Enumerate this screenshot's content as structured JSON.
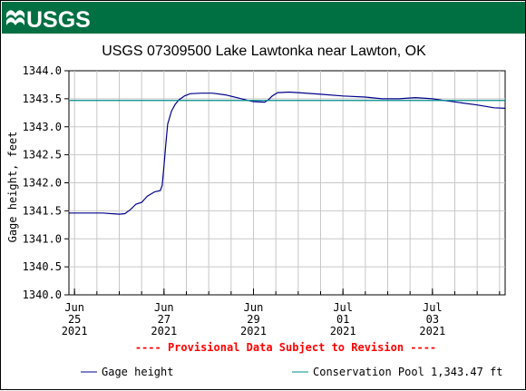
{
  "header": {
    "logo_text": "USGS",
    "band_color": "#006f41"
  },
  "chart_data": {
    "type": "line",
    "title": "USGS 07309500 Lake Lawtonka near Lawton, OK",
    "ylabel": "Gage height, feet",
    "xlabel": "",
    "ylim": [
      1340.0,
      1344.0
    ],
    "y_ticks": [
      "1340.0",
      "1340.5",
      "1341.0",
      "1341.5",
      "1342.0",
      "1342.5",
      "1343.0",
      "1343.5",
      "1344.0"
    ],
    "x_range": [
      "2021-06-24T21:00",
      "2021-07-04T15:00"
    ],
    "x_ticks": [
      {
        "date": "2021-06-25T00:00",
        "line1": "Jun",
        "line2": "25",
        "line3": "2021"
      },
      {
        "date": "2021-06-27T00:00",
        "line1": "Jun",
        "line2": "27",
        "line3": "2021"
      },
      {
        "date": "2021-06-29T00:00",
        "line1": "Jun",
        "line2": "29",
        "line3": "2021"
      },
      {
        "date": "2021-07-01T00:00",
        "line1": "Jul",
        "line2": "01",
        "line3": "2021"
      },
      {
        "date": "2021-07-03T00:00",
        "line1": "Jul",
        "line2": "03",
        "line3": "2021"
      }
    ],
    "grid": true,
    "provisional_note": "---- Provisional Data Subject to Revision ----",
    "series": [
      {
        "name": "Gage height",
        "color": "#00008b",
        "points": [
          [
            "2021-06-24T21:00",
            1341.46
          ],
          [
            "2021-06-25T06:00",
            1341.46
          ],
          [
            "2021-06-25T15:00",
            1341.46
          ],
          [
            "2021-06-26T00:00",
            1341.44
          ],
          [
            "2021-06-26T03:00",
            1341.45
          ],
          [
            "2021-06-26T06:00",
            1341.52
          ],
          [
            "2021-06-26T09:00",
            1341.62
          ],
          [
            "2021-06-26T12:00",
            1341.65
          ],
          [
            "2021-06-26T15:00",
            1341.76
          ],
          [
            "2021-06-26T19:00",
            1341.84
          ],
          [
            "2021-06-26T22:00",
            1341.86
          ],
          [
            "2021-06-26T23:00",
            1341.95
          ],
          [
            "2021-06-27T00:00",
            1342.3
          ],
          [
            "2021-06-27T01:00",
            1342.7
          ],
          [
            "2021-06-27T02:00",
            1343.05
          ],
          [
            "2021-06-27T04:00",
            1343.28
          ],
          [
            "2021-06-27T06:00",
            1343.4
          ],
          [
            "2021-06-27T08:00",
            1343.48
          ],
          [
            "2021-06-27T11:00",
            1343.55
          ],
          [
            "2021-06-27T14:00",
            1343.59
          ],
          [
            "2021-06-27T20:00",
            1343.6
          ],
          [
            "2021-06-28T02:00",
            1343.6
          ],
          [
            "2021-06-28T09:00",
            1343.57
          ],
          [
            "2021-06-28T15:00",
            1343.52
          ],
          [
            "2021-06-28T21:00",
            1343.47
          ],
          [
            "2021-06-29T00:00",
            1343.45
          ],
          [
            "2021-06-29T06:00",
            1343.44
          ],
          [
            "2021-06-29T08:00",
            1343.48
          ],
          [
            "2021-06-29T10:00",
            1343.55
          ],
          [
            "2021-06-29T13:00",
            1343.61
          ],
          [
            "2021-06-29T19:00",
            1343.62
          ],
          [
            "2021-06-30T00:00",
            1343.61
          ],
          [
            "2021-06-30T12:00",
            1343.58
          ],
          [
            "2021-07-01T00:00",
            1343.55
          ],
          [
            "2021-07-01T12:00",
            1343.53
          ],
          [
            "2021-07-01T21:00",
            1343.5
          ],
          [
            "2021-07-02T06:00",
            1343.5
          ],
          [
            "2021-07-02T15:00",
            1343.52
          ],
          [
            "2021-07-03T00:00",
            1343.5
          ],
          [
            "2021-07-03T06:00",
            1343.47
          ],
          [
            "2021-07-03T15:00",
            1343.43
          ],
          [
            "2021-07-04T00:00",
            1343.39
          ],
          [
            "2021-07-04T09:00",
            1343.34
          ],
          [
            "2021-07-04T15:00",
            1343.33
          ]
        ]
      },
      {
        "name": "Conservation Pool 1,343.47 ft",
        "color": "#008b8b",
        "constant": 1343.47
      }
    ],
    "legend": {
      "placement": "bottom",
      "entries": [
        "Gage height",
        "Conservation Pool 1,343.47 ft"
      ]
    }
  }
}
